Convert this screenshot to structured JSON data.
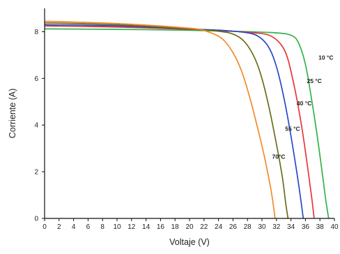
{
  "chart_data": {
    "type": "line",
    "title": "",
    "xlabel": "Voltaje (V)",
    "ylabel": "Corriente (A)",
    "xlim": [
      0,
      40
    ],
    "ylim": [
      0,
      9
    ],
    "xticks": [
      0,
      2,
      4,
      6,
      8,
      10,
      12,
      14,
      16,
      18,
      20,
      22,
      24,
      26,
      28,
      30,
      32,
      34,
      36,
      38,
      40
    ],
    "yticks": [
      0,
      2,
      4,
      6,
      8
    ],
    "grid": false,
    "legend": "inline labels",
    "series": [
      {
        "name": "10 °C",
        "color": "#2fb34a",
        "x": [
          0,
          10,
          20,
          28,
          32,
          34,
          35,
          36,
          36.8,
          37.6,
          38.3,
          38.8,
          39.2
        ],
        "y": [
          8.12,
          8.1,
          8.06,
          8.0,
          7.95,
          7.85,
          7.55,
          6.6,
          5.2,
          3.6,
          2.0,
          0.8,
          0
        ]
      },
      {
        "name": "25 °C",
        "color": "#e8353a",
        "x": [
          0,
          10,
          20,
          26,
          29,
          31,
          32.5,
          33.5,
          34.5,
          35.5,
          36.3,
          36.9,
          37.2
        ],
        "y": [
          8.25,
          8.2,
          8.1,
          8.02,
          7.95,
          7.85,
          7.5,
          6.9,
          5.6,
          3.9,
          2.2,
          0.8,
          0
        ]
      },
      {
        "name": "40 °C",
        "color": "#2a48c8",
        "x": [
          0,
          10,
          20,
          25,
          28,
          29.5,
          30.8,
          31.8,
          32.8,
          33.8,
          34.8,
          35.4,
          35.7
        ],
        "y": [
          8.3,
          8.25,
          8.12,
          8.05,
          7.95,
          7.8,
          7.4,
          6.7,
          5.5,
          3.9,
          2.0,
          0.7,
          0
        ]
      },
      {
        "name": "55 °C",
        "color": "#6b6b1c",
        "x": [
          0,
          10,
          20,
          24,
          26,
          27.5,
          28.8,
          29.8,
          30.8,
          31.8,
          32.8,
          33.3,
          33.6
        ],
        "y": [
          8.38,
          8.3,
          8.12,
          8.02,
          7.9,
          7.6,
          7.0,
          6.2,
          5.0,
          3.5,
          1.8,
          0.6,
          0
        ]
      },
      {
        "name": "70°C",
        "color": "#f28a2e",
        "x": [
          0,
          10,
          20,
          22.5,
          24.5,
          26,
          27.2,
          28.3,
          29.3,
          30.3,
          31.2,
          31.6,
          31.8
        ],
        "y": [
          8.45,
          8.35,
          8.15,
          8.0,
          7.7,
          7.1,
          6.3,
          5.2,
          4.0,
          2.7,
          1.3,
          0.5,
          0
        ]
      }
    ],
    "labels": [
      {
        "text": "10 °C",
        "x": 37.8,
        "y": 6.8
      },
      {
        "text": "25 °C",
        "x": 36.2,
        "y": 5.8
      },
      {
        "text": "40 °C",
        "x": 34.8,
        "y": 4.85
      },
      {
        "text": "55 °C",
        "x": 33.2,
        "y": 3.75
      },
      {
        "text": "70°C",
        "x": 31.4,
        "y": 2.55
      }
    ]
  }
}
